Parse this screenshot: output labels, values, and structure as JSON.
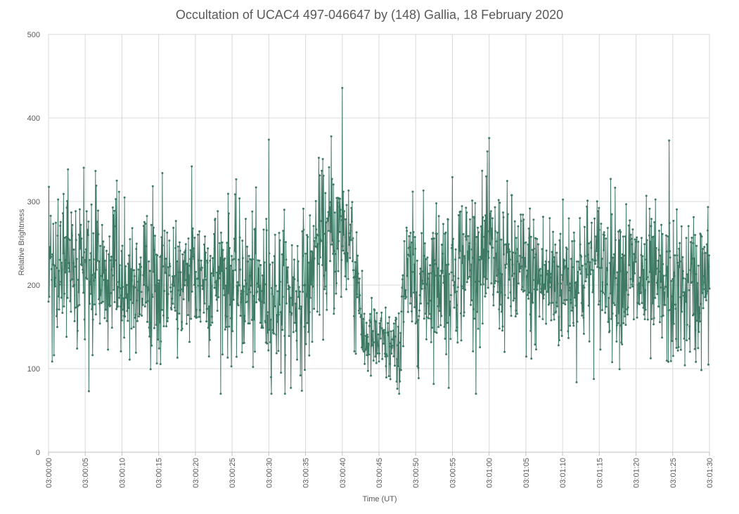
{
  "chart_data": {
    "type": "line",
    "title": "Occultation of UCAC4 497-046647 by (148) Gallia, 18 February 2020",
    "xlabel": "Time (UT)",
    "ylabel": "Relative Brightness",
    "ylim": [
      0,
      500
    ],
    "yticks": [
      "0",
      "100",
      "200",
      "300",
      "400",
      "500"
    ],
    "xlim_seconds": [
      0,
      90
    ],
    "xticks": [
      "03:00:00",
      "03:00:05",
      "03:00:10",
      "03:00:15",
      "03:00:20",
      "03:00:25",
      "03:00:30",
      "03:00:35",
      "03:00:40",
      "03:00:45",
      "03:00:50",
      "03:00:55",
      "03:01:00",
      "03:01:05",
      "03:01:10",
      "03:01:15",
      "03:01:20",
      "03:01:25",
      "03:01:30"
    ],
    "grid": true,
    "series_color": "#3f7a65",
    "samples_per_second": 20,
    "occultation": {
      "start_time": "03:00:42.5",
      "end_time": "03:00:48.0",
      "mean_brightness": 130
    },
    "mean_brightness": {
      "before_occultation": 205,
      "after_occultation": 210
    },
    "spread_std": 45,
    "notable_points": [
      {
        "time": "03:00:40.0",
        "value": 436
      },
      {
        "time": "03:00:38.5",
        "value": 378
      },
      {
        "time": "03:01:00.0",
        "value": 376
      },
      {
        "time": "03:00:30.0",
        "value": 374
      },
      {
        "time": "03:01:24.5",
        "value": 373
      },
      {
        "time": "03:00:15.5",
        "value": 334
      },
      {
        "time": "03:00:19.5",
        "value": 342
      },
      {
        "time": "03:00:06.5",
        "value": 319
      },
      {
        "time": "03:00:05.5",
        "value": 73
      },
      {
        "time": "03:00:47.5",
        "value": 76
      },
      {
        "time": "03:00:33.0",
        "value": 77
      },
      {
        "time": "03:00:54.5",
        "value": 77
      }
    ]
  }
}
